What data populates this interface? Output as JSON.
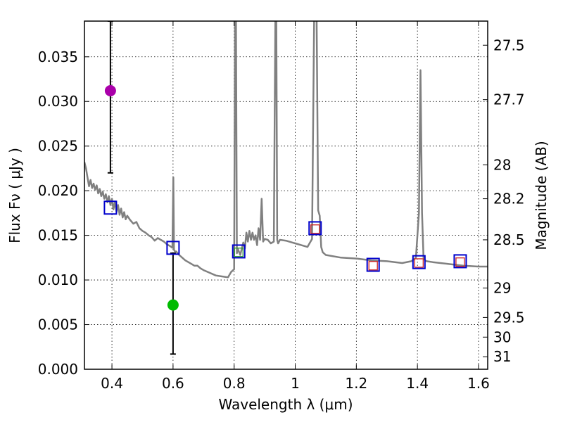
{
  "chart_data": {
    "type": "line",
    "xlabel": "Wavelength  λ (μm)",
    "ylabel": "Flux  Fν  ( μJy )",
    "y2label": "Magnitude (AB)",
    "xlim": [
      0.31,
      1.63
    ],
    "ylim": [
      0.0,
      0.039
    ],
    "grid": true,
    "x_ticks": [
      0.4,
      0.6,
      0.8,
      1.0,
      1.2,
      1.4,
      1.6
    ],
    "x_tick_labels": [
      "0.4",
      "0.6",
      "0.8",
      "1",
      "1.2",
      "1.4",
      "1.6"
    ],
    "y_ticks": [
      0.0,
      0.005,
      0.01,
      0.015,
      0.02,
      0.025,
      0.03,
      0.035
    ],
    "y_tick_labels": [
      "0.000",
      "0.005",
      "0.010",
      "0.015",
      "0.020",
      "0.025",
      "0.030",
      "0.035"
    ],
    "magnitude_ticks": [
      {
        "label": "27.5",
        "flux": 0.0363
      },
      {
        "label": "27.7",
        "flux": 0.0302
      },
      {
        "label": "28",
        "flux": 0.0229
      },
      {
        "label": "28.2",
        "flux": 0.0191
      },
      {
        "label": "28.5",
        "flux": 0.0145
      },
      {
        "label": "29",
        "flux": 0.0091
      },
      {
        "label": "29.5",
        "flux": 0.0058
      },
      {
        "label": "30",
        "flux": 0.0036
      },
      {
        "label": "31",
        "flux": 0.0014
      }
    ],
    "model_sed": {
      "name": "model spectrum",
      "color": "#808080",
      "x": [
        0.31,
        0.315,
        0.32,
        0.325,
        0.33,
        0.335,
        0.34,
        0.345,
        0.35,
        0.355,
        0.36,
        0.365,
        0.37,
        0.375,
        0.38,
        0.385,
        0.39,
        0.395,
        0.4,
        0.405,
        0.41,
        0.415,
        0.42,
        0.425,
        0.43,
        0.435,
        0.44,
        0.445,
        0.45,
        0.46,
        0.47,
        0.48,
        0.49,
        0.5,
        0.51,
        0.52,
        0.53,
        0.54,
        0.55,
        0.56,
        0.57,
        0.58,
        0.59,
        0.598,
        0.601,
        0.603,
        0.606,
        0.61,
        0.62,
        0.63,
        0.64,
        0.65,
        0.66,
        0.67,
        0.68,
        0.69,
        0.7,
        0.72,
        0.74,
        0.76,
        0.78,
        0.79,
        0.8,
        0.803,
        0.806,
        0.809,
        0.812,
        0.82,
        0.83,
        0.835,
        0.84,
        0.845,
        0.85,
        0.855,
        0.86,
        0.865,
        0.87,
        0.875,
        0.88,
        0.885,
        0.89,
        0.895,
        0.9,
        0.91,
        0.92,
        0.93,
        0.935,
        0.938,
        0.941,
        0.944,
        0.95,
        0.97,
        0.99,
        1.0,
        1.02,
        1.04,
        1.055,
        1.062,
        1.066,
        1.07,
        1.075,
        1.08,
        1.085,
        1.09,
        1.1,
        1.15,
        1.2,
        1.25,
        1.3,
        1.35,
        1.38,
        1.395,
        1.405,
        1.41,
        1.415,
        1.42,
        1.425,
        1.43,
        1.45,
        1.5,
        1.55,
        1.6,
        1.63
      ],
      "y": [
        0.0232,
        0.0225,
        0.0215,
        0.0205,
        0.0212,
        0.0203,
        0.0208,
        0.0201,
        0.0206,
        0.0197,
        0.0202,
        0.0194,
        0.0199,
        0.0191,
        0.0196,
        0.0187,
        0.0194,
        0.0184,
        0.0191,
        0.0179,
        0.0188,
        0.0176,
        0.0184,
        0.0173,
        0.018,
        0.017,
        0.0176,
        0.0168,
        0.0172,
        0.0167,
        0.0163,
        0.0165,
        0.0158,
        0.0155,
        0.0153,
        0.015,
        0.0148,
        0.0144,
        0.0147,
        0.0145,
        0.0143,
        0.014,
        0.0138,
        0.0136,
        0.0215,
        0.0134,
        0.0132,
        0.0132,
        0.0128,
        0.0125,
        0.0122,
        0.012,
        0.0118,
        0.0116,
        0.0116,
        0.0113,
        0.0111,
        0.0108,
        0.0105,
        0.0104,
        0.0103,
        0.0109,
        0.0112,
        0.0395,
        0.0395,
        0.013,
        0.0135,
        0.0128,
        0.0142,
        0.0135,
        0.0153,
        0.0143,
        0.0155,
        0.0145,
        0.0153,
        0.0145,
        0.015,
        0.0139,
        0.0158,
        0.0145,
        0.0191,
        0.0143,
        0.0146,
        0.0145,
        0.0141,
        0.0143,
        0.0395,
        0.0395,
        0.0145,
        0.0141,
        0.0145,
        0.0144,
        0.0142,
        0.0141,
        0.0139,
        0.0137,
        0.0146,
        0.0395,
        0.0395,
        0.0395,
        0.0178,
        0.0172,
        0.0137,
        0.0131,
        0.0128,
        0.0125,
        0.0124,
        0.0122,
        0.0121,
        0.0119,
        0.0121,
        0.0125,
        0.0175,
        0.0335,
        0.0175,
        0.0125,
        0.0122,
        0.0121,
        0.012,
        0.0118,
        0.0116,
        0.0115,
        0.0115
      ]
    },
    "model_photometry": {
      "name": "model photometry",
      "marker": "open square",
      "color": "#0000cc",
      "x": [
        0.395,
        0.6,
        0.815,
        1.065,
        1.255,
        1.405,
        1.54
      ],
      "y": [
        0.0181,
        0.0136,
        0.0132,
        0.0158,
        0.0117,
        0.012,
        0.0121
      ]
    },
    "observed_photometry": {
      "name": "observed photometry",
      "marker": "open square",
      "x": [
        0.815,
        1.065,
        1.255,
        1.405,
        1.54
      ],
      "y": [
        0.0131,
        0.0157,
        0.0116,
        0.0119,
        0.012
      ],
      "colors": [
        "#2e9c2e",
        "#cc2222",
        "#cc2222",
        "#cc2222",
        "#cc2222"
      ]
    },
    "measurements": [
      {
        "name": "magenta measurement",
        "x": 0.395,
        "y": 0.0312,
        "yerr_low": 0.022,
        "yerr_high": 0.039,
        "color": "#aa00aa"
      },
      {
        "name": "green measurement",
        "x": 0.6,
        "y": 0.0072,
        "yerr_low": 0.0017,
        "yerr_high": 0.013,
        "color": "#00bb00"
      }
    ]
  }
}
